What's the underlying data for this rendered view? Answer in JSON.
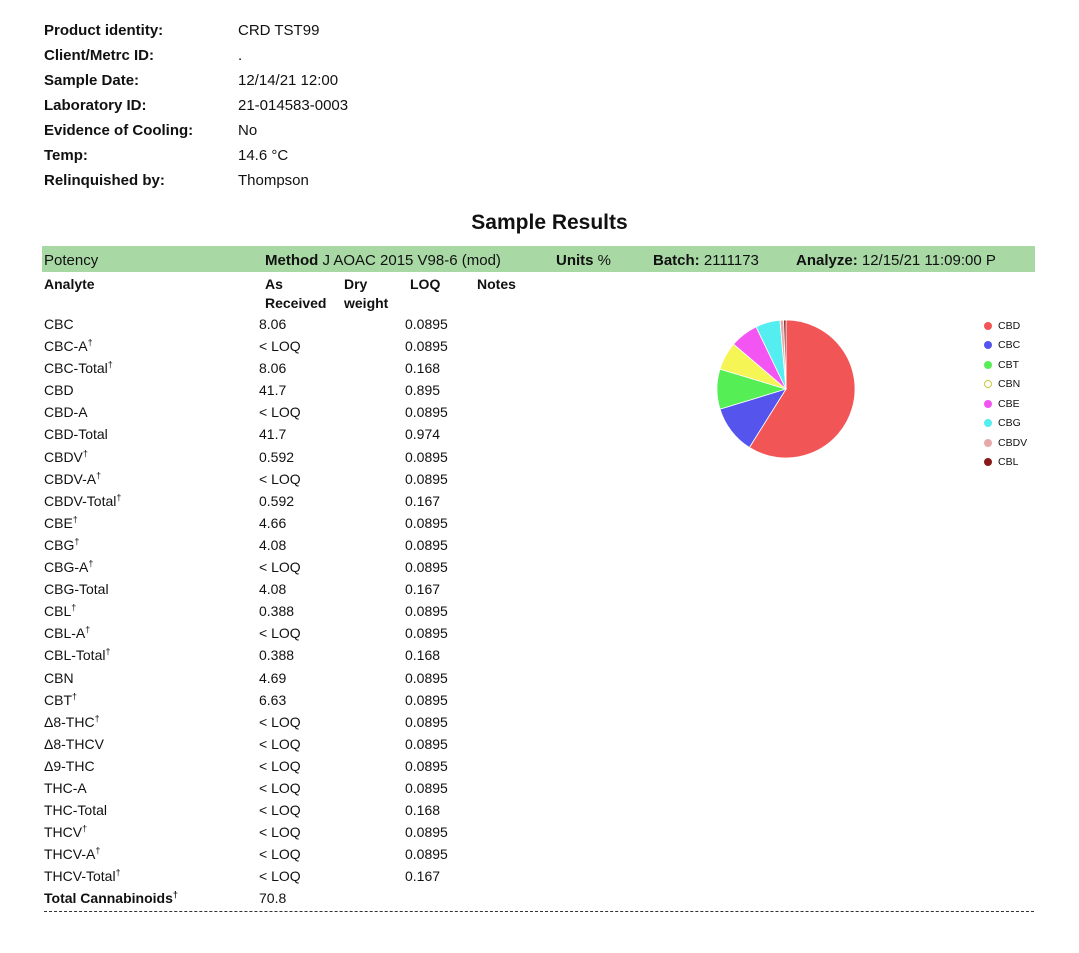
{
  "sample_info": [
    {
      "label": "Product identity:",
      "value": "CRD TST99"
    },
    {
      "label": "Client/Metrc ID:",
      "value": "."
    },
    {
      "label": "Sample Date:",
      "value": "12/14/21 12:00"
    },
    {
      "label": "Laboratory ID:",
      "value": "21-014583-0003"
    },
    {
      "label": "Evidence of Cooling:",
      "value": "No"
    },
    {
      "label": "Temp:",
      "value": "14.6 °C"
    },
    {
      "label": "Relinquished by:",
      "value": "Thompson"
    }
  ],
  "results_title": "Sample Results",
  "band": {
    "potency": "Potency",
    "method_label": "Method",
    "method_value": "J AOAC 2015 V98-6 (mod)",
    "units_label": "Units",
    "units_value": "%",
    "batch_label": "Batch:",
    "batch_value": "2111173",
    "analyze_label": "Analyze:",
    "analyze_value": "12/15/21  11:09:00 P"
  },
  "columns": {
    "analyte": "Analyte",
    "as_1": "As",
    "as_2": "Received",
    "dry_1": "Dry",
    "dry_2": "weight",
    "loq": "LOQ",
    "notes": "Notes"
  },
  "rows": [
    {
      "analyte": "CBC",
      "dagger": "",
      "as_received": "8.06",
      "loq": "0.0895"
    },
    {
      "analyte": "CBC-A",
      "dagger": "†",
      "as_received": "< LOQ",
      "loq": "0.0895"
    },
    {
      "analyte": "CBC-Total",
      "dagger": "†",
      "as_received": "8.06",
      "loq": "0.168"
    },
    {
      "analyte": "CBD",
      "dagger": "",
      "as_received": "41.7",
      "loq": "0.895"
    },
    {
      "analyte": "CBD-A",
      "dagger": "",
      "as_received": "< LOQ",
      "loq": "0.0895"
    },
    {
      "analyte": "CBD-Total",
      "dagger": "",
      "as_received": "41.7",
      "loq": "0.974"
    },
    {
      "analyte": "CBDV",
      "dagger": "†",
      "as_received": "0.592",
      "loq": "0.0895"
    },
    {
      "analyte": "CBDV-A",
      "dagger": "†",
      "as_received": "< LOQ",
      "loq": "0.0895"
    },
    {
      "analyte": "CBDV-Total",
      "dagger": "†",
      "as_received": "0.592",
      "loq": "0.167"
    },
    {
      "analyte": "CBE",
      "dagger": "†",
      "as_received": "4.66",
      "loq": "0.0895"
    },
    {
      "analyte": "CBG",
      "dagger": "†",
      "as_received": "4.08",
      "loq": "0.0895"
    },
    {
      "analyte": "CBG-A",
      "dagger": "†",
      "as_received": "< LOQ",
      "loq": "0.0895"
    },
    {
      "analyte": "CBG-Total",
      "dagger": "",
      "as_received": "4.08",
      "loq": "0.167"
    },
    {
      "analyte": "CBL",
      "dagger": "†",
      "as_received": "0.388",
      "loq": "0.0895"
    },
    {
      "analyte": "CBL-A",
      "dagger": "†",
      "as_received": "< LOQ",
      "loq": "0.0895"
    },
    {
      "analyte": "CBL-Total",
      "dagger": "†",
      "as_received": "0.388",
      "loq": "0.168"
    },
    {
      "analyte": "CBN",
      "dagger": "",
      "as_received": "4.69",
      "loq": "0.0895"
    },
    {
      "analyte": "CBT",
      "dagger": "†",
      "as_received": "6.63",
      "loq": "0.0895"
    },
    {
      "analyte": "Δ8-THC",
      "dagger": "†",
      "as_received": "< LOQ",
      "loq": "0.0895"
    },
    {
      "analyte": "Δ8-THCV",
      "dagger": "",
      "as_received": "< LOQ",
      "loq": "0.0895"
    },
    {
      "analyte": "Δ9-THC",
      "dagger": "",
      "as_received": "< LOQ",
      "loq": "0.0895"
    },
    {
      "analyte": "THC-A",
      "dagger": "",
      "as_received": "< LOQ",
      "loq": "0.0895"
    },
    {
      "analyte": "THC-Total",
      "dagger": "",
      "as_received": "< LOQ",
      "loq": "0.168"
    },
    {
      "analyte": "THCV",
      "dagger": "†",
      "as_received": "< LOQ",
      "loq": "0.0895"
    },
    {
      "analyte": "THCV-A",
      "dagger": "†",
      "as_received": "< LOQ",
      "loq": "0.0895"
    },
    {
      "analyte": "THCV-Total",
      "dagger": "†",
      "as_received": "< LOQ",
      "loq": "0.167"
    },
    {
      "analyte": "Total Cannabinoids",
      "dagger": "†",
      "as_received": "70.8",
      "loq": "",
      "total": true
    }
  ],
  "chart_data": {
    "type": "pie",
    "categories": [
      "CBD",
      "CBC",
      "CBT",
      "CBN",
      "CBE",
      "CBG",
      "CBDV",
      "CBL"
    ],
    "values": [
      41.7,
      8.06,
      6.63,
      4.69,
      4.66,
      4.08,
      0.592,
      0.388
    ],
    "colors": [
      "#f25555",
      "#5555ee",
      "#55ee55",
      "#f5f555",
      "#f355f3",
      "#55eef0",
      "#e8a8a8",
      "#8a1a1a"
    ],
    "legend": [
      "CBD",
      "CBC",
      "CBT",
      "CBN",
      "CBE",
      "CBG",
      "CBDV",
      "CBL"
    ],
    "legend_placement": "right"
  }
}
